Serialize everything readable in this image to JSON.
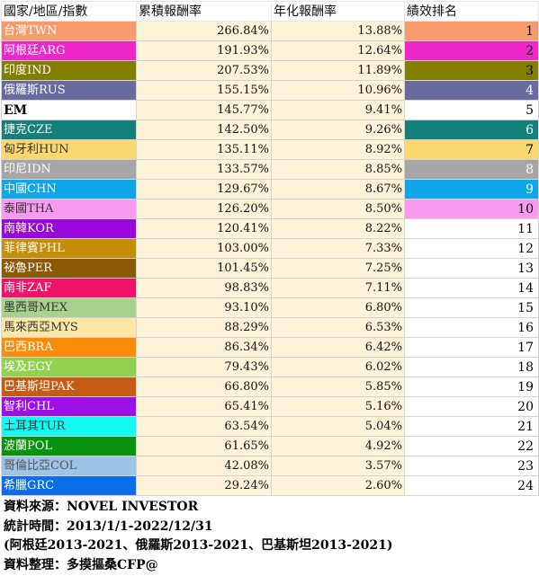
{
  "headers": [
    "國家/地區/指數",
    "累積報酬率",
    "年化報酬率",
    "績效排名"
  ],
  "rows": [
    {
      "name": "台灣TWN",
      "cum": "266.84%",
      "ann": "13.88%",
      "rank": "1",
      "bg": "#f79b6c",
      "fg": "#ffffff",
      "rankbg": "#f79b6c",
      "rankfg": "#000000"
    },
    {
      "name": "阿根廷ARG",
      "cum": "191.93%",
      "ann": "12.64%",
      "rank": "2",
      "bg": "#ee27c9",
      "fg": "#ffffff",
      "rankbg": "#ee27c9",
      "rankfg": "#000000"
    },
    {
      "name": "印度IND",
      "cum": "207.53%",
      "ann": "11.89%",
      "rank": "3",
      "bg": "#827f00",
      "fg": "#ffffff",
      "rankbg": "#827f00",
      "rankfg": "#000000"
    },
    {
      "name": "俄羅斯RUS",
      "cum": "155.15%",
      "ann": "10.96%",
      "rank": "4",
      "bg": "#686b9e",
      "fg": "#ffffff",
      "rankbg": "#686b9e",
      "rankfg": "#ffffff"
    },
    {
      "name": "EM",
      "cum": "145.77%",
      "ann": "9.41%",
      "rank": "5",
      "bg": "#ffffff",
      "fg": "#000000",
      "rankbg": "#ffffff",
      "rankfg": "#000000",
      "bold": true
    },
    {
      "name": "捷克CZE",
      "cum": "142.50%",
      "ann": "9.26%",
      "rank": "6",
      "bg": "#157f7c",
      "fg": "#ffffff",
      "rankbg": "#157f7c",
      "rankfg": "#ffffff"
    },
    {
      "name": "匈牙利HUN",
      "cum": "135.11%",
      "ann": "8.92%",
      "rank": "7",
      "bg": "#fad86e",
      "fg": "#333333",
      "rankbg": "#fad86e",
      "rankfg": "#000000"
    },
    {
      "name": "印尼IDN",
      "cum": "133.57%",
      "ann": "8.85%",
      "rank": "8",
      "bg": "#a6a6a6",
      "fg": "#ffffff",
      "rankbg": "#a6a6a6",
      "rankfg": "#ffffff"
    },
    {
      "name": "中國CHN",
      "cum": "129.67%",
      "ann": "8.67%",
      "rank": "9",
      "bg": "#0fa6ea",
      "fg": "#ffffff",
      "rankbg": "#0fa6ea",
      "rankfg": "#ffffff"
    },
    {
      "name": "泰國THA",
      "cum": "126.20%",
      "ann": "8.50%",
      "rank": "10",
      "bg": "#f99af0",
      "fg": "#333333",
      "rankbg": "#f99af0",
      "rankfg": "#000000"
    },
    {
      "name": "南韓KOR",
      "cum": "120.41%",
      "ann": "8.22%",
      "rank": "11",
      "bg": "#9a07d8",
      "fg": "#ffffff",
      "rankbg": "#ffffff",
      "rankfg": "#000000"
    },
    {
      "name": "菲律賓PHL",
      "cum": "103.00%",
      "ann": "7.33%",
      "rank": "12",
      "bg": "#c48e06",
      "fg": "#ffffff",
      "rankbg": "#ffffff",
      "rankfg": "#000000"
    },
    {
      "name": "祕魯PER",
      "cum": "101.45%",
      "ann": "7.25%",
      "rank": "13",
      "bg": "#8c5a06",
      "fg": "#ffffff",
      "rankbg": "#ffffff",
      "rankfg": "#000000"
    },
    {
      "name": "南非ZAF",
      "cum": "98.83%",
      "ann": "7.11%",
      "rank": "14",
      "bg": "#ef1369",
      "fg": "#ffffff",
      "rankbg": "#ffffff",
      "rankfg": "#000000"
    },
    {
      "name": "墨西哥MEX",
      "cum": "93.10%",
      "ann": "6.80%",
      "rank": "15",
      "bg": "#a9d18e",
      "fg": "#333333",
      "rankbg": "#ffffff",
      "rankfg": "#000000"
    },
    {
      "name": "馬來西亞MYS",
      "cum": "88.29%",
      "ann": "6.53%",
      "rank": "16",
      "bg": "#fde7a6",
      "fg": "#333333",
      "rankbg": "#ffffff",
      "rankfg": "#000000"
    },
    {
      "name": "巴西BRA",
      "cum": "86.34%",
      "ann": "6.42%",
      "rank": "17",
      "bg": "#fb8c09",
      "fg": "#ffffff",
      "rankbg": "#ffffff",
      "rankfg": "#000000"
    },
    {
      "name": "埃及EGY",
      "cum": "79.43%",
      "ann": "6.02%",
      "rank": "18",
      "bg": "#92d050",
      "fg": "#ffffff",
      "rankbg": "#ffffff",
      "rankfg": "#000000"
    },
    {
      "name": "巴基斯坦PAK",
      "cum": "66.80%",
      "ann": "5.85%",
      "rank": "19",
      "bg": "#c65b14",
      "fg": "#ffffff",
      "rankbg": "#ffffff",
      "rankfg": "#000000"
    },
    {
      "name": "智利CHL",
      "cum": "65.41%",
      "ann": "5.16%",
      "rank": "20",
      "bg": "#9d11e6",
      "fg": "#ffffff",
      "rankbg": "#ffffff",
      "rankfg": "#000000"
    },
    {
      "name": "土耳其TUR",
      "cum": "63.54%",
      "ann": "5.04%",
      "rank": "21",
      "bg": "#12f9f3",
      "fg": "#333333",
      "rankbg": "#ffffff",
      "rankfg": "#000000"
    },
    {
      "name": "波蘭POL",
      "cum": "61.65%",
      "ann": "4.92%",
      "rank": "22",
      "bg": "#07930d",
      "fg": "#ffffff",
      "rankbg": "#ffffff",
      "rankfg": "#000000"
    },
    {
      "name": "哥倫比亞COL",
      "cum": "42.08%",
      "ann": "3.57%",
      "rank": "23",
      "bg": "#9dc3e6",
      "fg": "#555555",
      "rankbg": "#ffffff",
      "rankfg": "#000000"
    },
    {
      "name": "希臘GRC",
      "cum": "29.24%",
      "ann": "2.60%",
      "rank": "24",
      "bg": "#0b6de8",
      "fg": "#ffffff",
      "rankbg": "#ffffff",
      "rankfg": "#000000"
    }
  ],
  "footer": {
    "source": "資料來源：NOVEL INVESTOR",
    "period": "統計時間：2013/1/1-2022/12/31",
    "note": "(阿根廷2013-2021、俄羅斯2013-2021、巴基斯坦2013-2021)",
    "compiled": "資料整理：多摸摳桑CFP@"
  }
}
